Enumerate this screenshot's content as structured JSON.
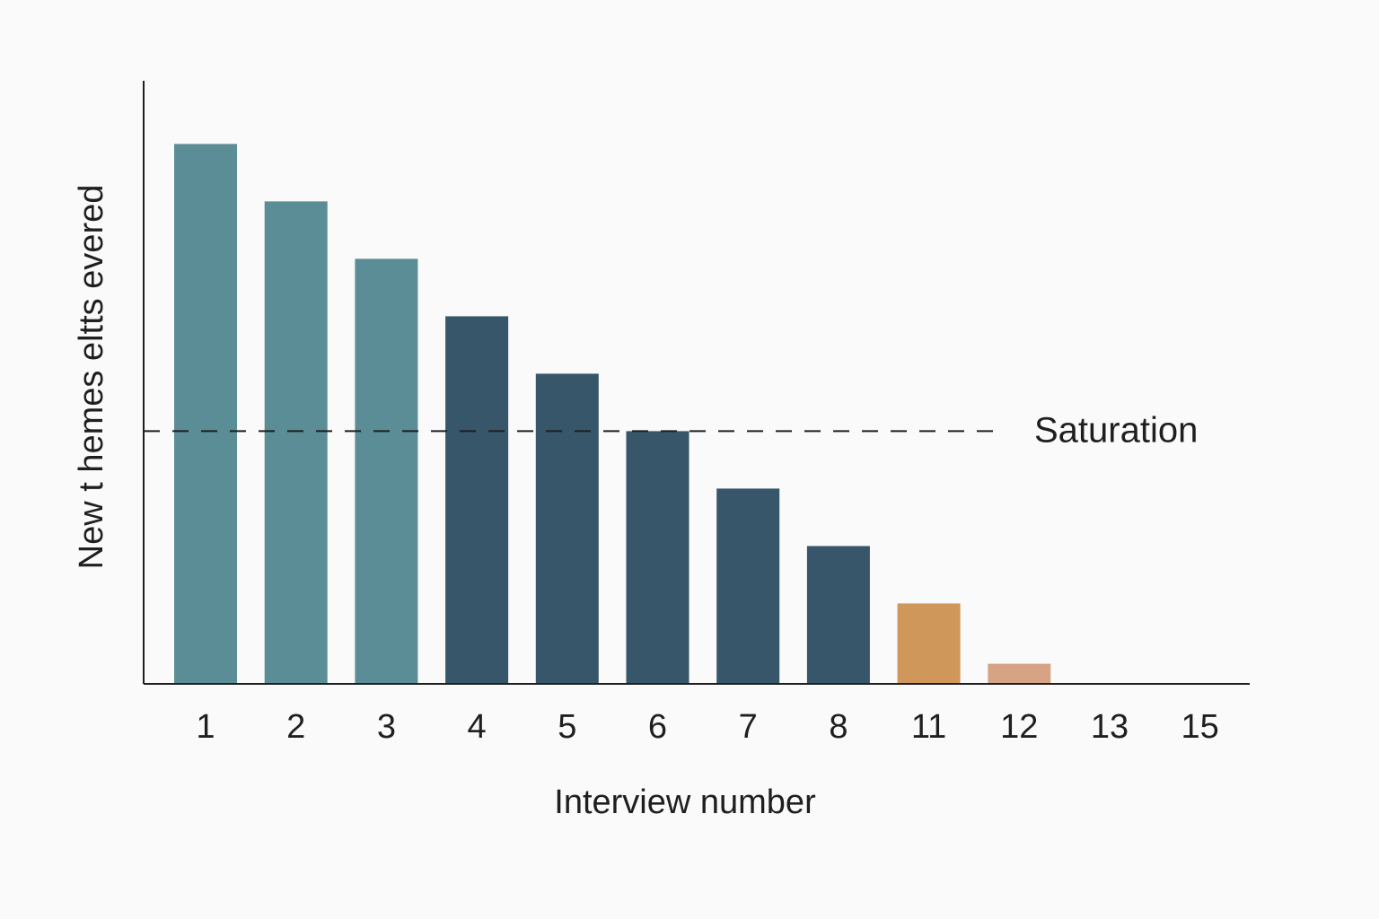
{
  "chart_data": {
    "type": "bar",
    "title": "",
    "xlabel": "Interview number",
    "ylabel": "New t hemes eltts evered",
    "categories": [
      "1",
      "2",
      "3",
      "4",
      "5",
      "6",
      "7",
      "8",
      "11",
      "12",
      "13",
      "15"
    ],
    "values": [
      9.4,
      8.4,
      7.4,
      6.4,
      5.4,
      4.4,
      3.4,
      2.4,
      1.4,
      0.35,
      0,
      0
    ],
    "bar_colors": [
      "#5a8d95",
      "#5a8d95",
      "#5a8d95",
      "#38566a",
      "#38566a",
      "#38566a",
      "#38566a",
      "#38566a",
      "#cf975a",
      "#d6a384",
      "#d6a384",
      "#d6a384"
    ],
    "ylim": [
      0,
      10.5
    ],
    "grid": false,
    "legend": "none",
    "reference_line": {
      "value": 4.4,
      "label": "Saturation",
      "style": "dashed",
      "color": "#1f1f1f"
    },
    "axis_color": "#1f1f1f"
  }
}
